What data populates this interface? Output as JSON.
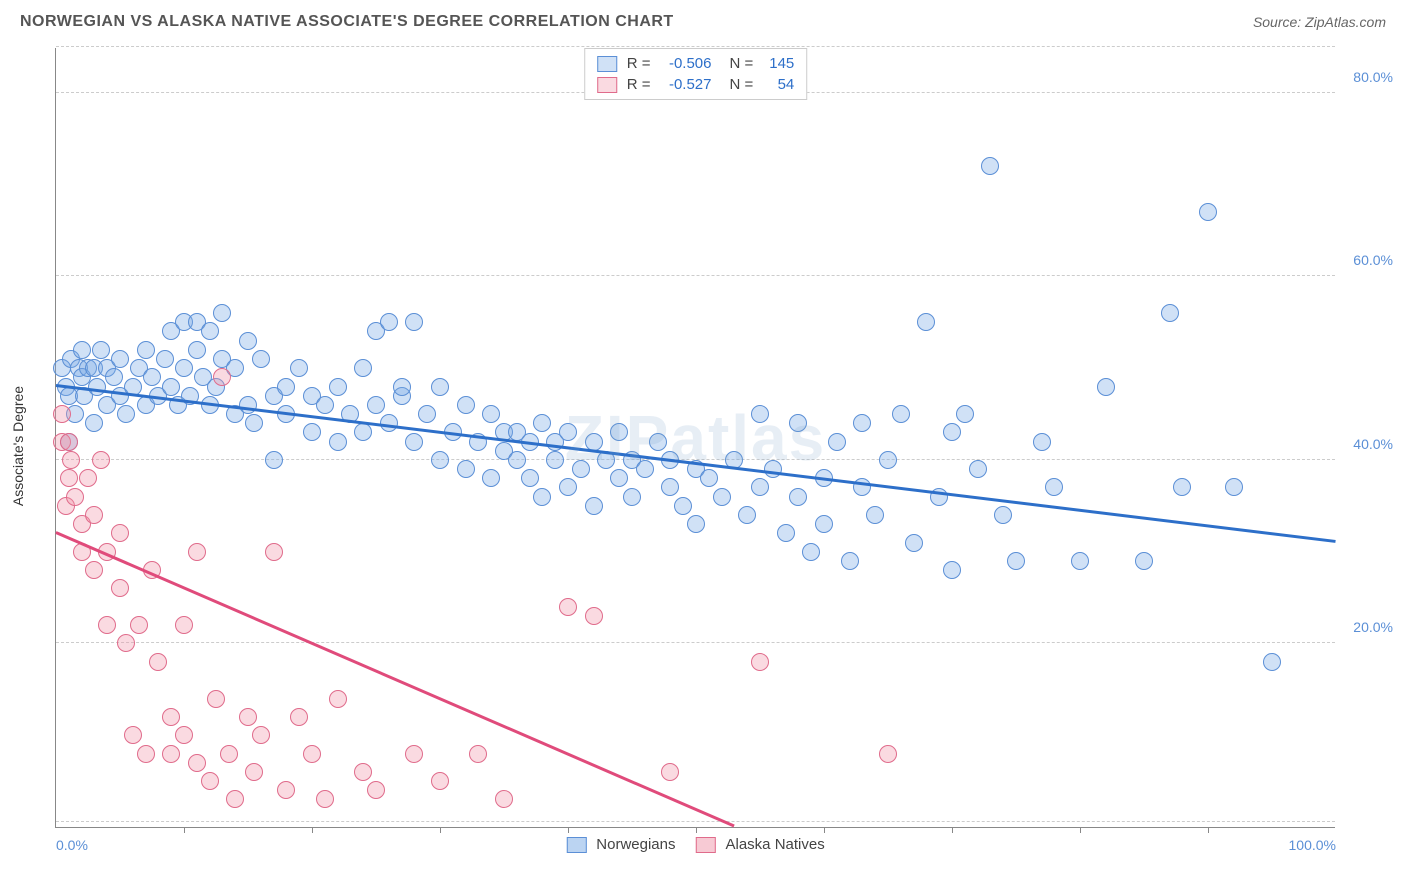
{
  "header": {
    "title": "NORWEGIAN VS ALASKA NATIVE ASSOCIATE'S DEGREE CORRELATION CHART",
    "source": "Source: ZipAtlas.com"
  },
  "watermark": "ZIPatlas",
  "chart": {
    "type": "scatter",
    "yaxis_label": "Associate's Degree",
    "xlim": [
      0,
      100
    ],
    "ylim": [
      0,
      85
    ],
    "yticks": [
      {
        "v": 20,
        "label": "20.0%",
        "color": "#5b8fd6"
      },
      {
        "v": 40,
        "label": "40.0%",
        "color": "#5b8fd6"
      },
      {
        "v": 60,
        "label": "60.0%",
        "color": "#5b8fd6"
      },
      {
        "v": 80,
        "label": "80.0%",
        "color": "#5b8fd6"
      }
    ],
    "extra_gridlines": [
      85,
      0.5
    ],
    "xticks_minor": [
      10,
      20,
      30,
      40,
      50,
      60,
      70,
      80,
      90
    ],
    "xticks_labels": [
      {
        "v": 0,
        "label": "0.0%",
        "color": "#5b8fd6"
      },
      {
        "v": 100,
        "label": "100.0%",
        "color": "#5b8fd6"
      }
    ],
    "background_color": "#ffffff",
    "grid_color": "#cccccc",
    "point_radius": 9,
    "point_border_width": 1.5,
    "series": [
      {
        "name": "Norwegians",
        "fill": "rgba(120,170,230,0.35)",
        "stroke": "#5b8fd6",
        "line_color": "#2d6fc9",
        "trend": {
          "x1": 0,
          "y1": 48,
          "x2": 100,
          "y2": 31
        },
        "stats": {
          "R_label": "R =",
          "R": "-0.506",
          "N_label": "N =",
          "N": "145"
        },
        "points": [
          [
            0.5,
            50
          ],
          [
            0.8,
            48
          ],
          [
            1,
            42
          ],
          [
            1,
            47
          ],
          [
            1.2,
            51
          ],
          [
            1.5,
            45
          ],
          [
            1.8,
            50
          ],
          [
            2,
            49
          ],
          [
            2,
            52
          ],
          [
            2.2,
            47
          ],
          [
            2.5,
            50
          ],
          [
            3,
            50
          ],
          [
            3,
            44
          ],
          [
            3.2,
            48
          ],
          [
            3.5,
            52
          ],
          [
            4,
            46
          ],
          [
            4,
            50
          ],
          [
            4.5,
            49
          ],
          [
            5,
            47
          ],
          [
            5,
            51
          ],
          [
            5.5,
            45
          ],
          [
            6,
            48
          ],
          [
            6.5,
            50
          ],
          [
            7,
            46
          ],
          [
            7,
            52
          ],
          [
            7.5,
            49
          ],
          [
            8,
            47
          ],
          [
            8.5,
            51
          ],
          [
            9,
            48
          ],
          [
            9,
            54
          ],
          [
            9.5,
            46
          ],
          [
            10,
            50
          ],
          [
            10,
            55
          ],
          [
            10.5,
            47
          ],
          [
            11,
            52
          ],
          [
            11,
            55
          ],
          [
            11.5,
            49
          ],
          [
            12,
            46
          ],
          [
            12,
            54
          ],
          [
            12.5,
            48
          ],
          [
            13,
            51
          ],
          [
            13,
            56
          ],
          [
            14,
            45
          ],
          [
            14,
            50
          ],
          [
            15,
            53
          ],
          [
            15,
            46
          ],
          [
            15.5,
            44
          ],
          [
            16,
            51
          ],
          [
            17,
            47
          ],
          [
            17,
            40
          ],
          [
            18,
            45
          ],
          [
            18,
            48
          ],
          [
            19,
            50
          ],
          [
            20,
            43
          ],
          [
            20,
            47
          ],
          [
            21,
            46
          ],
          [
            22,
            48
          ],
          [
            22,
            42
          ],
          [
            23,
            45
          ],
          [
            24,
            50
          ],
          [
            24,
            43
          ],
          [
            25,
            46
          ],
          [
            25,
            54
          ],
          [
            26,
            44
          ],
          [
            26,
            55
          ],
          [
            27,
            47
          ],
          [
            27,
            48
          ],
          [
            28,
            55
          ],
          [
            28,
            42
          ],
          [
            29,
            45
          ],
          [
            30,
            48
          ],
          [
            30,
            40
          ],
          [
            31,
            43
          ],
          [
            32,
            46
          ],
          [
            32,
            39
          ],
          [
            33,
            42
          ],
          [
            34,
            45
          ],
          [
            34,
            38
          ],
          [
            35,
            43
          ],
          [
            35,
            41
          ],
          [
            36,
            40
          ],
          [
            36,
            43
          ],
          [
            37,
            42
          ],
          [
            37,
            38
          ],
          [
            38,
            44
          ],
          [
            38,
            36
          ],
          [
            39,
            40
          ],
          [
            39,
            42
          ],
          [
            40,
            43
          ],
          [
            40,
            37
          ],
          [
            41,
            39
          ],
          [
            42,
            42
          ],
          [
            42,
            35
          ],
          [
            43,
            40
          ],
          [
            44,
            38
          ],
          [
            44,
            43
          ],
          [
            45,
            36
          ],
          [
            45,
            40
          ],
          [
            46,
            39
          ],
          [
            47,
            42
          ],
          [
            48,
            37
          ],
          [
            48,
            40
          ],
          [
            49,
            35
          ],
          [
            50,
            39
          ],
          [
            50,
            33
          ],
          [
            51,
            38
          ],
          [
            52,
            36
          ],
          [
            53,
            40
          ],
          [
            54,
            34
          ],
          [
            55,
            45
          ],
          [
            55,
            37
          ],
          [
            56,
            39
          ],
          [
            57,
            32
          ],
          [
            58,
            36
          ],
          [
            58,
            44
          ],
          [
            59,
            30
          ],
          [
            60,
            38
          ],
          [
            60,
            33
          ],
          [
            61,
            42
          ],
          [
            62,
            29
          ],
          [
            63,
            37
          ],
          [
            63,
            44
          ],
          [
            64,
            34
          ],
          [
            65,
            40
          ],
          [
            66,
            45
          ],
          [
            67,
            31
          ],
          [
            68,
            55
          ],
          [
            69,
            36
          ],
          [
            70,
            43
          ],
          [
            70,
            28
          ],
          [
            71,
            45
          ],
          [
            72,
            39
          ],
          [
            73,
            72
          ],
          [
            74,
            34
          ],
          [
            75,
            29
          ],
          [
            77,
            42
          ],
          [
            78,
            37
          ],
          [
            80,
            29
          ],
          [
            82,
            48
          ],
          [
            85,
            29
          ],
          [
            87,
            56
          ],
          [
            88,
            37
          ],
          [
            90,
            67
          ],
          [
            92,
            37
          ],
          [
            95,
            18
          ]
        ]
      },
      {
        "name": "Alaska Natives",
        "fill": "rgba(240,150,170,0.35)",
        "stroke": "#e06b8b",
        "line_color": "#e04b7b",
        "trend": {
          "x1": 0,
          "y1": 32,
          "x2": 53,
          "y2": 0
        },
        "stats": {
          "R_label": "R =",
          "R": "-0.527",
          "N_label": "N =",
          "N": "54"
        },
        "points": [
          [
            0.5,
            42
          ],
          [
            0.5,
            45
          ],
          [
            0.8,
            35
          ],
          [
            1,
            42
          ],
          [
            1,
            38
          ],
          [
            1.2,
            40
          ],
          [
            1.5,
            36
          ],
          [
            2,
            33
          ],
          [
            2,
            30
          ],
          [
            2.5,
            38
          ],
          [
            3,
            28
          ],
          [
            3,
            34
          ],
          [
            3.5,
            40
          ],
          [
            4,
            22
          ],
          [
            4,
            30
          ],
          [
            5,
            26
          ],
          [
            5,
            32
          ],
          [
            5.5,
            20
          ],
          [
            6,
            10
          ],
          [
            6.5,
            22
          ],
          [
            7,
            8
          ],
          [
            7.5,
            28
          ],
          [
            8,
            18
          ],
          [
            9,
            8
          ],
          [
            9,
            12
          ],
          [
            10,
            10
          ],
          [
            10,
            22
          ],
          [
            11,
            7
          ],
          [
            11,
            30
          ],
          [
            12,
            5
          ],
          [
            12.5,
            14
          ],
          [
            13,
            49
          ],
          [
            13.5,
            8
          ],
          [
            14,
            3
          ],
          [
            15,
            12
          ],
          [
            15.5,
            6
          ],
          [
            16,
            10
          ],
          [
            17,
            30
          ],
          [
            18,
            4
          ],
          [
            19,
            12
          ],
          [
            20,
            8
          ],
          [
            21,
            3
          ],
          [
            22,
            14
          ],
          [
            24,
            6
          ],
          [
            25,
            4
          ],
          [
            28,
            8
          ],
          [
            30,
            5
          ],
          [
            33,
            8
          ],
          [
            35,
            3
          ],
          [
            40,
            24
          ],
          [
            42,
            23
          ],
          [
            48,
            6
          ],
          [
            65,
            8
          ],
          [
            55,
            18
          ]
        ]
      }
    ]
  },
  "legend_bottom": [
    {
      "label": "Norwegians",
      "fill": "rgba(120,170,230,0.5)",
      "stroke": "#5b8fd6"
    },
    {
      "label": "Alaska Natives",
      "fill": "rgba(240,150,170,0.5)",
      "stroke": "#e06b8b"
    }
  ]
}
